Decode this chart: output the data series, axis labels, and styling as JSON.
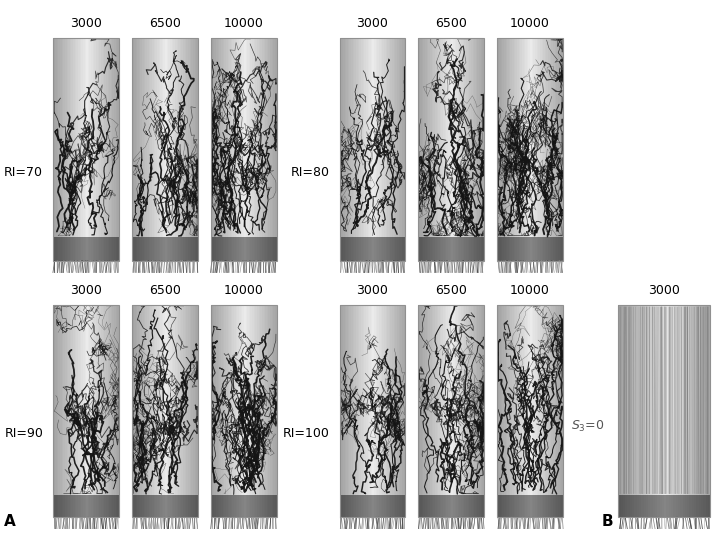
{
  "background_color": "#ffffff",
  "groups": [
    {
      "ri": 70,
      "row": 0,
      "col": 0,
      "seed_base": 10
    },
    {
      "ri": 80,
      "row": 0,
      "col": 1,
      "seed_base": 20
    },
    {
      "ri": 90,
      "row": 1,
      "col": 0,
      "seed_base": 30
    },
    {
      "ri": 100,
      "row": 1,
      "col": 1,
      "seed_base": 40
    }
  ],
  "n_axons_list": [
    3000,
    6500,
    10000
  ],
  "panel_B_step": "3000",
  "font_size_step": 9,
  "font_size_ri": 9,
  "font_size_AB": 11
}
